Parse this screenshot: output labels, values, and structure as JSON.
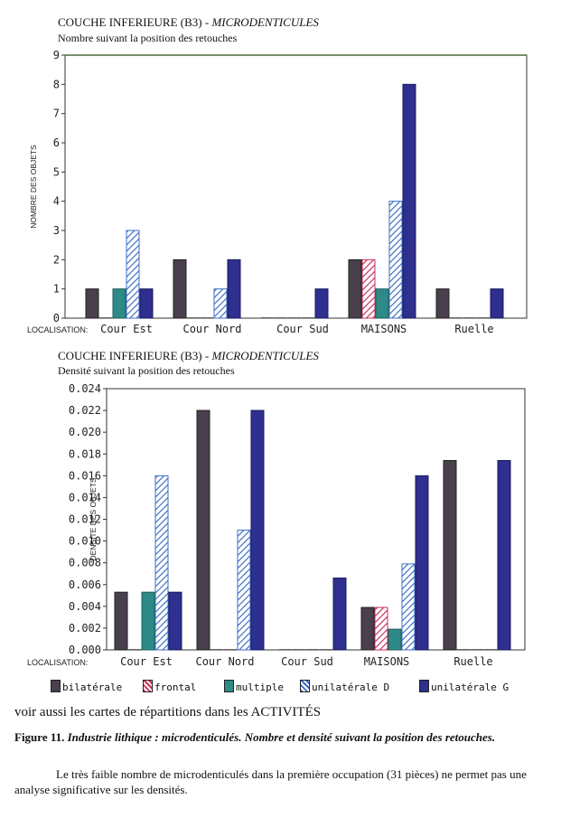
{
  "chart_data": [
    {
      "type": "bar",
      "title": "COUCHE INFERIEURE (B3) - ",
      "title_italic": "MICRODENTICULES",
      "subtitle": "Nombre suivant la position des retouches",
      "ylabel": "NOMBRE DES OBJETS",
      "xlabel": "LOCALISATION:",
      "ylim": [
        0,
        9
      ],
      "yticks": [
        "0",
        "1",
        "2",
        "3",
        "4",
        "5",
        "6",
        "7",
        "8",
        "9"
      ],
      "categories": [
        "Cour Est",
        "Cour Nord",
        "Cour Sud",
        "MAISONS",
        "Ruelle"
      ],
      "series": [
        {
          "name": "bilatérale",
          "values": [
            1,
            2,
            0,
            2,
            1
          ]
        },
        {
          "name": "frontal",
          "values": [
            0,
            0,
            0,
            2,
            0
          ]
        },
        {
          "name": "multiple",
          "values": [
            1,
            0,
            0,
            1,
            0
          ]
        },
        {
          "name": "unilatérale D",
          "values": [
            3,
            1,
            0,
            4,
            0
          ]
        },
        {
          "name": "unilatérale G",
          "values": [
            1,
            2,
            1,
            8,
            1
          ]
        }
      ]
    },
    {
      "type": "bar",
      "title": "COUCHE INFERIEURE (B3) - ",
      "title_italic": "MICRODENTICULES",
      "subtitle": "Densité suivant la position des retouches",
      "ylabel": "DENSITE DES OBJETS",
      "xlabel": "LOCALISATION:",
      "ylim": [
        0,
        0.024
      ],
      "yticks": [
        "0.000",
        "0.002",
        "0.004",
        "0.006",
        "0.008",
        "0.010",
        "0.012",
        "0.014",
        "0.016",
        "0.018",
        "0.020",
        "0.022",
        "0.024"
      ],
      "categories": [
        "Cour Est",
        "Cour Nord",
        "Cour Sud",
        "MAISONS",
        "Ruelle"
      ],
      "series": [
        {
          "name": "bilatérale",
          "values": [
            0.0053,
            0.022,
            0,
            0.0039,
            0.0174
          ]
        },
        {
          "name": "frontal",
          "values": [
            0,
            0,
            0,
            0.0039,
            0
          ]
        },
        {
          "name": "multiple",
          "values": [
            0.0053,
            0,
            0,
            0.0019,
            0
          ]
        },
        {
          "name": "unilatérale D",
          "values": [
            0.016,
            0.011,
            0,
            0.0079,
            0
          ]
        },
        {
          "name": "unilatérale G",
          "values": [
            0.0053,
            0.022,
            0.0066,
            0.016,
            0.0174
          ]
        }
      ]
    }
  ],
  "legend": [
    {
      "label": "bilatérale",
      "color": "#4a3f4c"
    },
    {
      "label": "frontal",
      "color": "#c8305a"
    },
    {
      "label": "multiple",
      "color": "#2d8a86"
    },
    {
      "label": "unilatérale D",
      "color": "#3f6fc4"
    },
    {
      "label": "unilatérale G",
      "color": "#2e2f8e"
    }
  ],
  "footer": {
    "voir": "voir aussi les cartes de répartitions dans les ACTIVITÉS",
    "figure_label": "Figure 11.",
    "figure_caption": "Industrie lithique : microdenticulés. Nombre et densité suivant la position des retouches.",
    "paragraph": "Le très faible nombre de microdenticulés dans la première occupation (31 pièces) ne permet pas une analyse significative sur les densités."
  }
}
